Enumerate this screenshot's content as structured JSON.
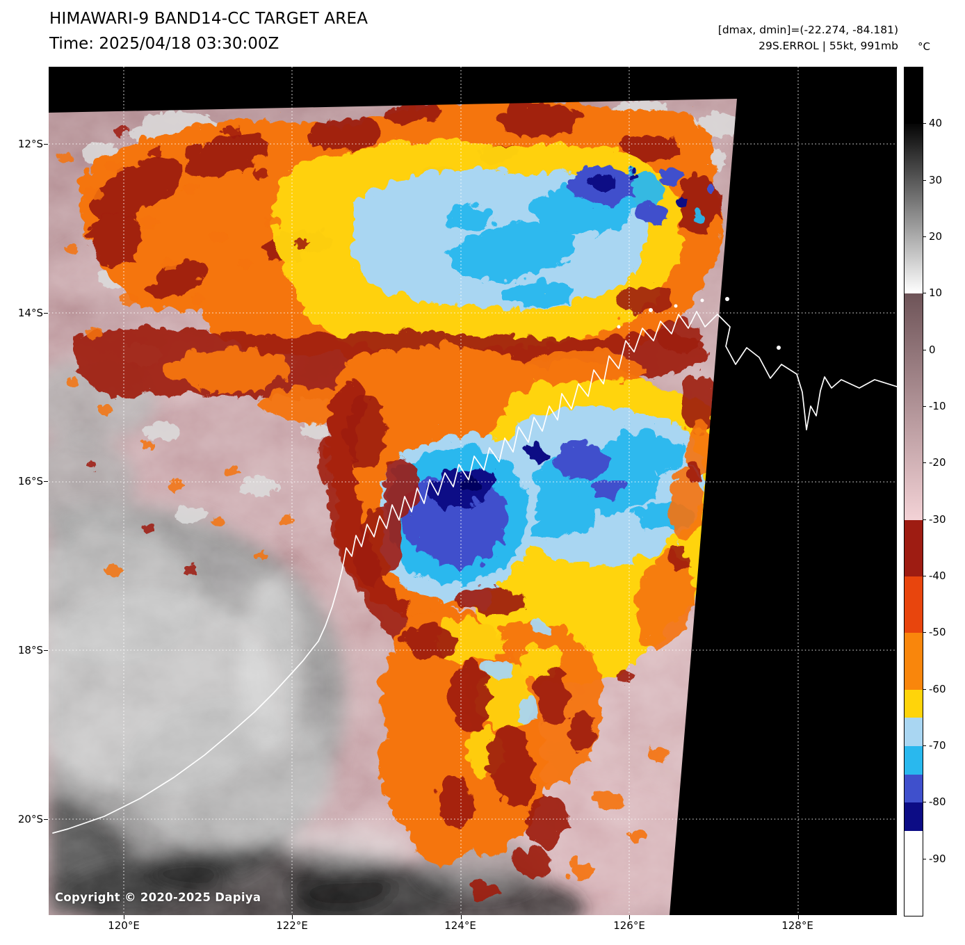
{
  "header": {
    "title": "HIMAWARI-9 BAND14-CC TARGET AREA",
    "time_line": "Time: 2025/04/18 03:30:00Z",
    "dmax_dmin": "[dmax, dmin]=(-22.274, -84.181)",
    "storm_line": "29S.ERROL | 55kt, 991mb"
  },
  "colorbar": {
    "unit_label": "°C",
    "value_range": [
      50,
      -100
    ],
    "ticks": [
      40,
      30,
      20,
      10,
      0,
      -10,
      -20,
      -30,
      -40,
      -50,
      -60,
      -70,
      -80,
      -90
    ],
    "segments": [
      {
        "from": 50,
        "to": 40,
        "colors": [
          "#000000",
          "#000000"
        ]
      },
      {
        "from": 40,
        "to": 10,
        "colors": [
          "#050505",
          "#ffffff"
        ]
      },
      {
        "from": 10,
        "to": -30,
        "colors": [
          "#6e5458",
          "#f3d2d6"
        ]
      },
      {
        "from": -30,
        "to": -40,
        "colors": [
          "#9e1c12",
          "#9e1c12"
        ]
      },
      {
        "from": -40,
        "to": -50,
        "colors": [
          "#e8450d",
          "#e8450d"
        ]
      },
      {
        "from": -50,
        "to": -60,
        "colors": [
          "#f9860c",
          "#f9860c"
        ]
      },
      {
        "from": -60,
        "to": -65,
        "colors": [
          "#ffd40a",
          "#ffd40a"
        ]
      },
      {
        "from": -65,
        "to": -70,
        "colors": [
          "#a9d6f2",
          "#a9d6f2"
        ]
      },
      {
        "from": -70,
        "to": -75,
        "colors": [
          "#29b8ee",
          "#29b8ee"
        ]
      },
      {
        "from": -75,
        "to": -80,
        "colors": [
          "#3f50cc",
          "#3f50cc"
        ]
      },
      {
        "from": -80,
        "to": -85,
        "colors": [
          "#0c0c85",
          "#0c0c85"
        ]
      },
      {
        "from": -85,
        "to": -100,
        "colors": [
          "#ffffff",
          "#ffffff"
        ]
      }
    ]
  },
  "map": {
    "x_ticks": [
      "120°E",
      "122°E",
      "124°E",
      "126°E",
      "128°E"
    ],
    "y_ticks": [
      "12°S",
      "14°S",
      "16°S",
      "18°S",
      "20°S"
    ],
    "copyright": "Copyright © 2020-2025 Dapiya"
  }
}
